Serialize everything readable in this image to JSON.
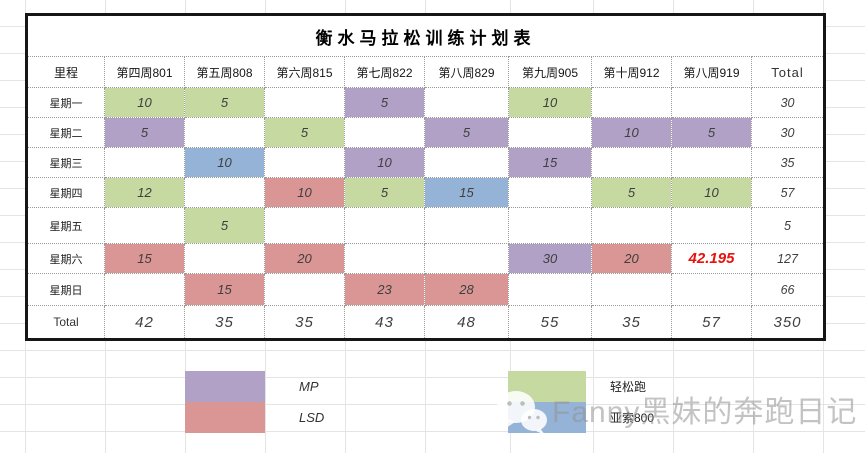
{
  "title": "衡水马拉松训练计划表",
  "colors": {
    "green": "#c5d9a1",
    "purple": "#b2a1c7",
    "blue": "#95b3d7",
    "red": "#d99694",
    "highlight_text": "#e8120c"
  },
  "table": {
    "headers": [
      "里程",
      "第四周801",
      "第五周808",
      "第六周815",
      "第七周822",
      "第八周829",
      "第九周905",
      "第十周912",
      "第八周919",
      "Total"
    ],
    "rows": [
      {
        "label": "星期一",
        "cells": [
          {
            "v": "10",
            "c": "green"
          },
          {
            "v": "5",
            "c": "green"
          },
          null,
          {
            "v": "5",
            "c": "purple"
          },
          null,
          {
            "v": "10",
            "c": "green"
          },
          null,
          null
        ],
        "total": "30"
      },
      {
        "label": "星期二",
        "cells": [
          {
            "v": "5",
            "c": "purple"
          },
          null,
          {
            "v": "5",
            "c": "green"
          },
          null,
          {
            "v": "5",
            "c": "purple"
          },
          null,
          {
            "v": "10",
            "c": "purple"
          },
          {
            "v": "5",
            "c": "purple"
          }
        ],
        "total": "30"
      },
      {
        "label": "星期三",
        "cells": [
          null,
          {
            "v": "10",
            "c": "blue"
          },
          null,
          {
            "v": "10",
            "c": "purple"
          },
          null,
          {
            "v": "15",
            "c": "purple"
          },
          null,
          null
        ],
        "total": "35"
      },
      {
        "label": "星期四",
        "cells": [
          {
            "v": "12",
            "c": "green"
          },
          null,
          {
            "v": "10",
            "c": "red"
          },
          {
            "v": "5",
            "c": "green"
          },
          {
            "v": "15",
            "c": "blue"
          },
          null,
          {
            "v": "5",
            "c": "green"
          },
          {
            "v": "10",
            "c": "green"
          }
        ],
        "total": "57"
      },
      {
        "label": "星期五",
        "cells": [
          null,
          {
            "v": "5",
            "c": "green"
          },
          null,
          null,
          null,
          null,
          null,
          null
        ],
        "total": "5"
      },
      {
        "label": "星期六",
        "cells": [
          {
            "v": "15",
            "c": "red"
          },
          null,
          {
            "v": "20",
            "c": "red"
          },
          null,
          null,
          {
            "v": "30",
            "c": "purple"
          },
          {
            "v": "20",
            "c": "red"
          },
          {
            "v": "42.195",
            "c": "redtext"
          }
        ],
        "total": "127"
      },
      {
        "label": "星期日",
        "cells": [
          null,
          {
            "v": "15",
            "c": "red"
          },
          null,
          {
            "v": "23",
            "c": "red"
          },
          {
            "v": "28",
            "c": "red"
          },
          null,
          null,
          null
        ],
        "total": "66"
      }
    ],
    "total_row": {
      "label": "Total",
      "values": [
        "42",
        "35",
        "35",
        "43",
        "48",
        "55",
        "35",
        "57"
      ],
      "grand_total": "350"
    }
  },
  "legend": {
    "left": [
      {
        "color": "purple",
        "label": "MP"
      },
      {
        "color": "red",
        "label": "LSD"
      }
    ],
    "right": [
      {
        "color": "green",
        "label": "轻松跑"
      },
      {
        "color": "blue",
        "label": "亚索800"
      }
    ]
  },
  "watermark": {
    "icon": "wechat-icon",
    "text": "Fanny黑妹的奔跑日记"
  }
}
